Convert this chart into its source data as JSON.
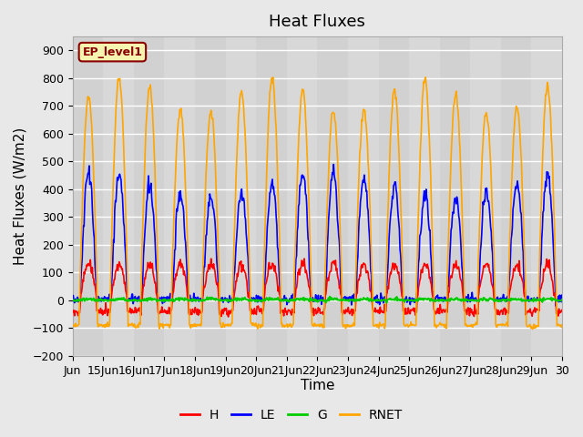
{
  "title": "Heat Fluxes",
  "ylabel": "Heat Fluxes (W/m2)",
  "xlabel": "Time",
  "annotation": "EP_level1",
  "ylim": [
    -200,
    950
  ],
  "yticks": [
    -200,
    -100,
    0,
    100,
    200,
    300,
    400,
    500,
    600,
    700,
    800,
    900
  ],
  "colors": {
    "H": "#ff0000",
    "LE": "#0000ff",
    "G": "#00cc00",
    "RNET": "#ffa500"
  },
  "legend_labels": [
    "H",
    "LE",
    "G",
    "RNET"
  ],
  "bg_color": "#e8e8e8",
  "plot_bg_color": "#d8d8d8",
  "grid_color": "#ffffff",
  "title_fontsize": 13,
  "axis_fontsize": 11,
  "tick_fontsize": 9,
  "n_days": 16,
  "pts_per_day": 48,
  "x_tick_positions": [
    0,
    1,
    2,
    3,
    4,
    5,
    6,
    7,
    8,
    9,
    10,
    11,
    12,
    13,
    14,
    15,
    16
  ],
  "x_tick_labels": [
    "Jun",
    "15Jun",
    "16Jun",
    "17Jun",
    "18Jun",
    "19Jun",
    "20Jun",
    "21Jun",
    "22Jun",
    "23Jun",
    "24Jun",
    "25Jun",
    "26Jun",
    "27Jun",
    "28Jun",
    "29Jun",
    "30"
  ]
}
